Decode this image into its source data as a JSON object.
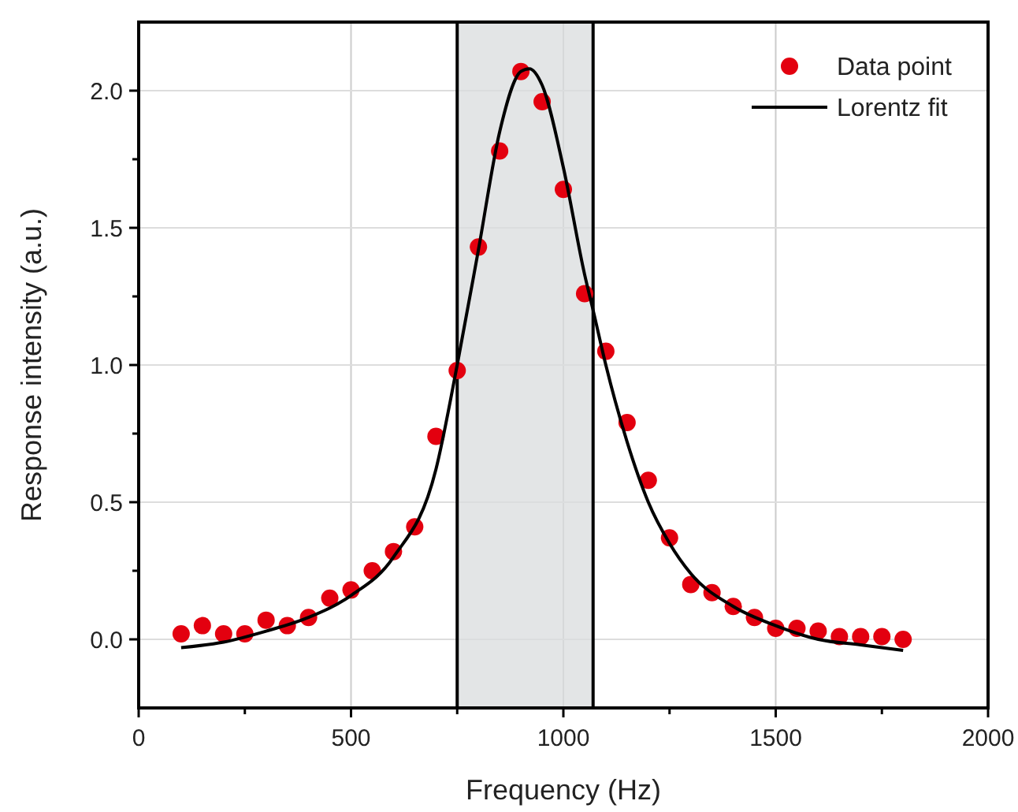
{
  "chart_data": {
    "type": "scatter",
    "xlabel": "Frequency (Hz)",
    "ylabel": "Response intensity (a.u.)",
    "xlim": [
      0,
      2000
    ],
    "ylim": [
      -0.25,
      2.25
    ],
    "xticks": [
      0,
      {
        "value": 250,
        "label": null
      },
      500,
      {
        "value": 750,
        "label": null
      },
      1000,
      {
        "value": 1250,
        "label": null
      },
      1500,
      {
        "value": 1750,
        "label": null
      },
      2000
    ],
    "yticks": [
      {
        "value": 0,
        "label": "0.0"
      },
      {
        "value": 0.25,
        "label": null
      },
      {
        "value": 0.5,
        "label": "0.5"
      },
      {
        "value": 0.75,
        "label": null
      },
      {
        "value": 1,
        "label": "1.0"
      },
      {
        "value": 1.25,
        "label": null
      },
      {
        "value": 1.5,
        "label": "1.5"
      },
      {
        "value": 1.75,
        "label": null
      },
      {
        "value": 2,
        "label": "2.0"
      }
    ],
    "grid": true,
    "legend": "top right",
    "bands": [
      {
        "axis": "x",
        "from": 750,
        "to": 1070,
        "color": "#d9dcdd"
      }
    ],
    "series": [
      {
        "name": "Data point",
        "marker": "circle",
        "color": "#e3000f",
        "x": [
          100,
          150,
          200,
          250,
          300,
          350,
          400,
          450,
          500,
          550,
          600,
          650,
          700,
          750,
          800,
          850,
          900,
          950,
          1000,
          1050,
          1100,
          1150,
          1200,
          1250,
          1300,
          1350,
          1400,
          1450,
          1500,
          1550,
          1600,
          1650,
          1700,
          1750,
          1800
        ],
        "values": [
          0.02,
          0.05,
          0.02,
          0.02,
          0.07,
          0.05,
          0.08,
          0.15,
          0.18,
          0.25,
          0.32,
          0.41,
          0.74,
          0.98,
          1.43,
          1.78,
          2.07,
          1.96,
          1.64,
          1.26,
          1.05,
          0.79,
          0.58,
          0.37,
          0.2,
          0.17,
          0.12,
          0.08,
          0.04,
          0.04,
          0.03,
          0.01,
          0.01,
          0.01,
          0.0
        ]
      },
      {
        "name": "Lorentz fit",
        "type": "line",
        "line_style": "solid",
        "color": "#000000",
        "x": [
          100,
          200,
          300,
          400,
          500,
          600,
          700,
          750,
          800,
          850,
          900,
          920,
          950,
          1000,
          1050,
          1070,
          1100,
          1150,
          1200,
          1250,
          1300,
          1400,
          1500,
          1600,
          1700,
          1800
        ],
        "values": [
          -0.03,
          -0.01,
          0.03,
          0.08,
          0.16,
          0.3,
          0.62,
          1.0,
          1.42,
          1.85,
          2.07,
          2.08,
          2.02,
          1.72,
          1.33,
          1.2,
          1.0,
          0.72,
          0.5,
          0.35,
          0.24,
          0.12,
          0.05,
          0.0,
          -0.02,
          -0.04
        ]
      }
    ]
  }
}
